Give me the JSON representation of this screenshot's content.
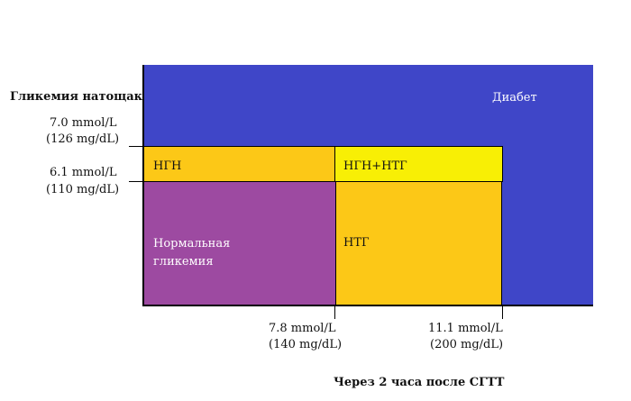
{
  "y_axis": {
    "title": "Гликемия натощак",
    "ticks": [
      {
        "line1": "7.0 mmol/L",
        "line2": "(126 mg/dL)"
      },
      {
        "line1": "6.1 mmol/L",
        "line2": "(110 mg/dL)"
      }
    ]
  },
  "x_axis": {
    "title": "Через 2 часа после СГТТ",
    "ticks": [
      {
        "line1": "7.8 mmol/L",
        "line2": "(140 mg/dL)"
      },
      {
        "line1": "11.1 mmol/L",
        "line2": "(200 mg/dL)"
      }
    ]
  },
  "zones": {
    "diabetes": {
      "label": "Диабет",
      "color": "#3f46c8"
    },
    "ifg": {
      "label": "НГН",
      "color": "#fcc817"
    },
    "ifg_igt": {
      "label": "НГН+НТГ",
      "color": "#f8ef05"
    },
    "normal": {
      "label": "Нормальная гликемия",
      "color": "#9d4aa1"
    },
    "igt": {
      "label": "НТГ",
      "color": "#fcc817"
    }
  }
}
